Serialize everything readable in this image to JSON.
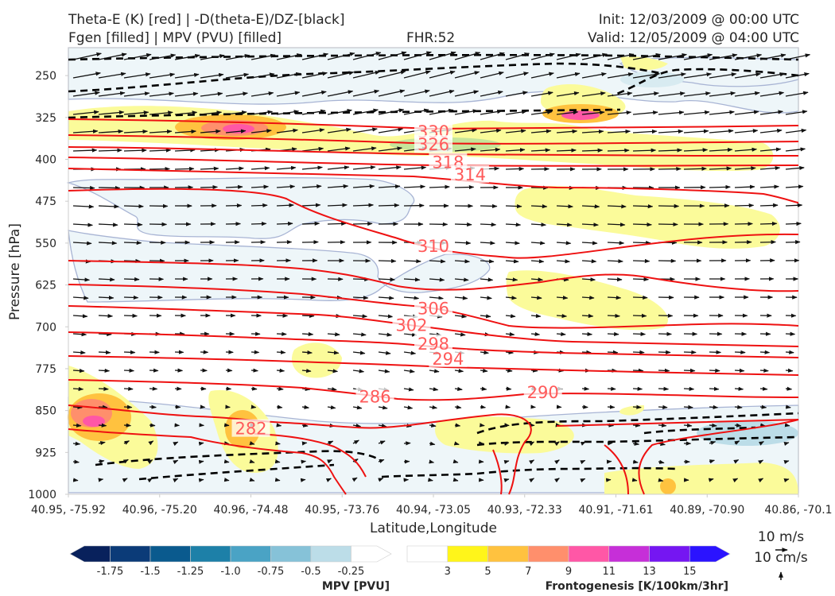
{
  "header": {
    "title_line1": "Theta-E (K) [red] | -D(theta-E)/DZ-[black]",
    "title_line2": "Fgen [filled] | MPV (PVU) [filled]",
    "fhr": "FHR:52",
    "init": "Init: 12/03/2009 @ 00:00 UTC",
    "valid": "Valid: 12/05/2009 @ 04:00 UTC"
  },
  "chart_data": {
    "type": "cross-section",
    "xlabel": "Latitude,Longitude",
    "ylabel": "Pressure [hPa]",
    "ylim": [
      1000,
      200
    ],
    "x_ticks": [
      "40.95, -75.92",
      "40.96, -75.20",
      "40.96, -74.48",
      "40.95, -73.76",
      "40.94, -73.05",
      "40.93, -72.33",
      "40.91, -71.61",
      "40.89, -70.90",
      "40.86, -70.1"
    ],
    "y_ticks": [
      250,
      325,
      400,
      475,
      550,
      625,
      700,
      775,
      850,
      925,
      1000
    ],
    "theta_e_contour_labels": [
      {
        "value": "330",
        "x": 0.5,
        "p": 355
      },
      {
        "value": "326",
        "x": 0.5,
        "p": 378
      },
      {
        "value": "318",
        "x": 0.52,
        "p": 410
      },
      {
        "value": "314",
        "x": 0.55,
        "p": 432
      },
      {
        "value": "310",
        "x": 0.5,
        "p": 560
      },
      {
        "value": "306",
        "x": 0.5,
        "p": 672
      },
      {
        "value": "302",
        "x": 0.47,
        "p": 702
      },
      {
        "value": "298",
        "x": 0.5,
        "p": 735
      },
      {
        "value": "294",
        "x": 0.52,
        "p": 762
      },
      {
        "value": "290",
        "x": 0.65,
        "p": 822
      },
      {
        "value": "286",
        "x": 0.42,
        "p": 830
      },
      {
        "value": "282",
        "x": 0.25,
        "p": 887
      }
    ],
    "wind_reference": {
      "horizontal": "10 m/s",
      "vertical": "10 cm/s"
    },
    "colorbars": [
      {
        "title": "MPV [PVU]",
        "ticks": [
          "-1.75",
          "-1.5",
          "-1.25",
          "-1.0",
          "-0.75",
          "-0.5",
          "-0.25"
        ],
        "colors": [
          "#08215c",
          "#0b3b78",
          "#0a5a8e",
          "#1d80a8",
          "#4aa3c5",
          "#86c2d8",
          "#bcdde8",
          "#ffffff"
        ]
      },
      {
        "title": "Frontogenesis [K/100km/3hr]",
        "ticks": [
          "3",
          "5",
          "7",
          "9",
          "11",
          "13",
          "15"
        ],
        "colors": [
          "#ffffff",
          "#fff51a",
          "#ffc23f",
          "#ff8f6c",
          "#ff57a6",
          "#c62fd8",
          "#7516f2",
          "#2b13ff"
        ]
      }
    ]
  }
}
